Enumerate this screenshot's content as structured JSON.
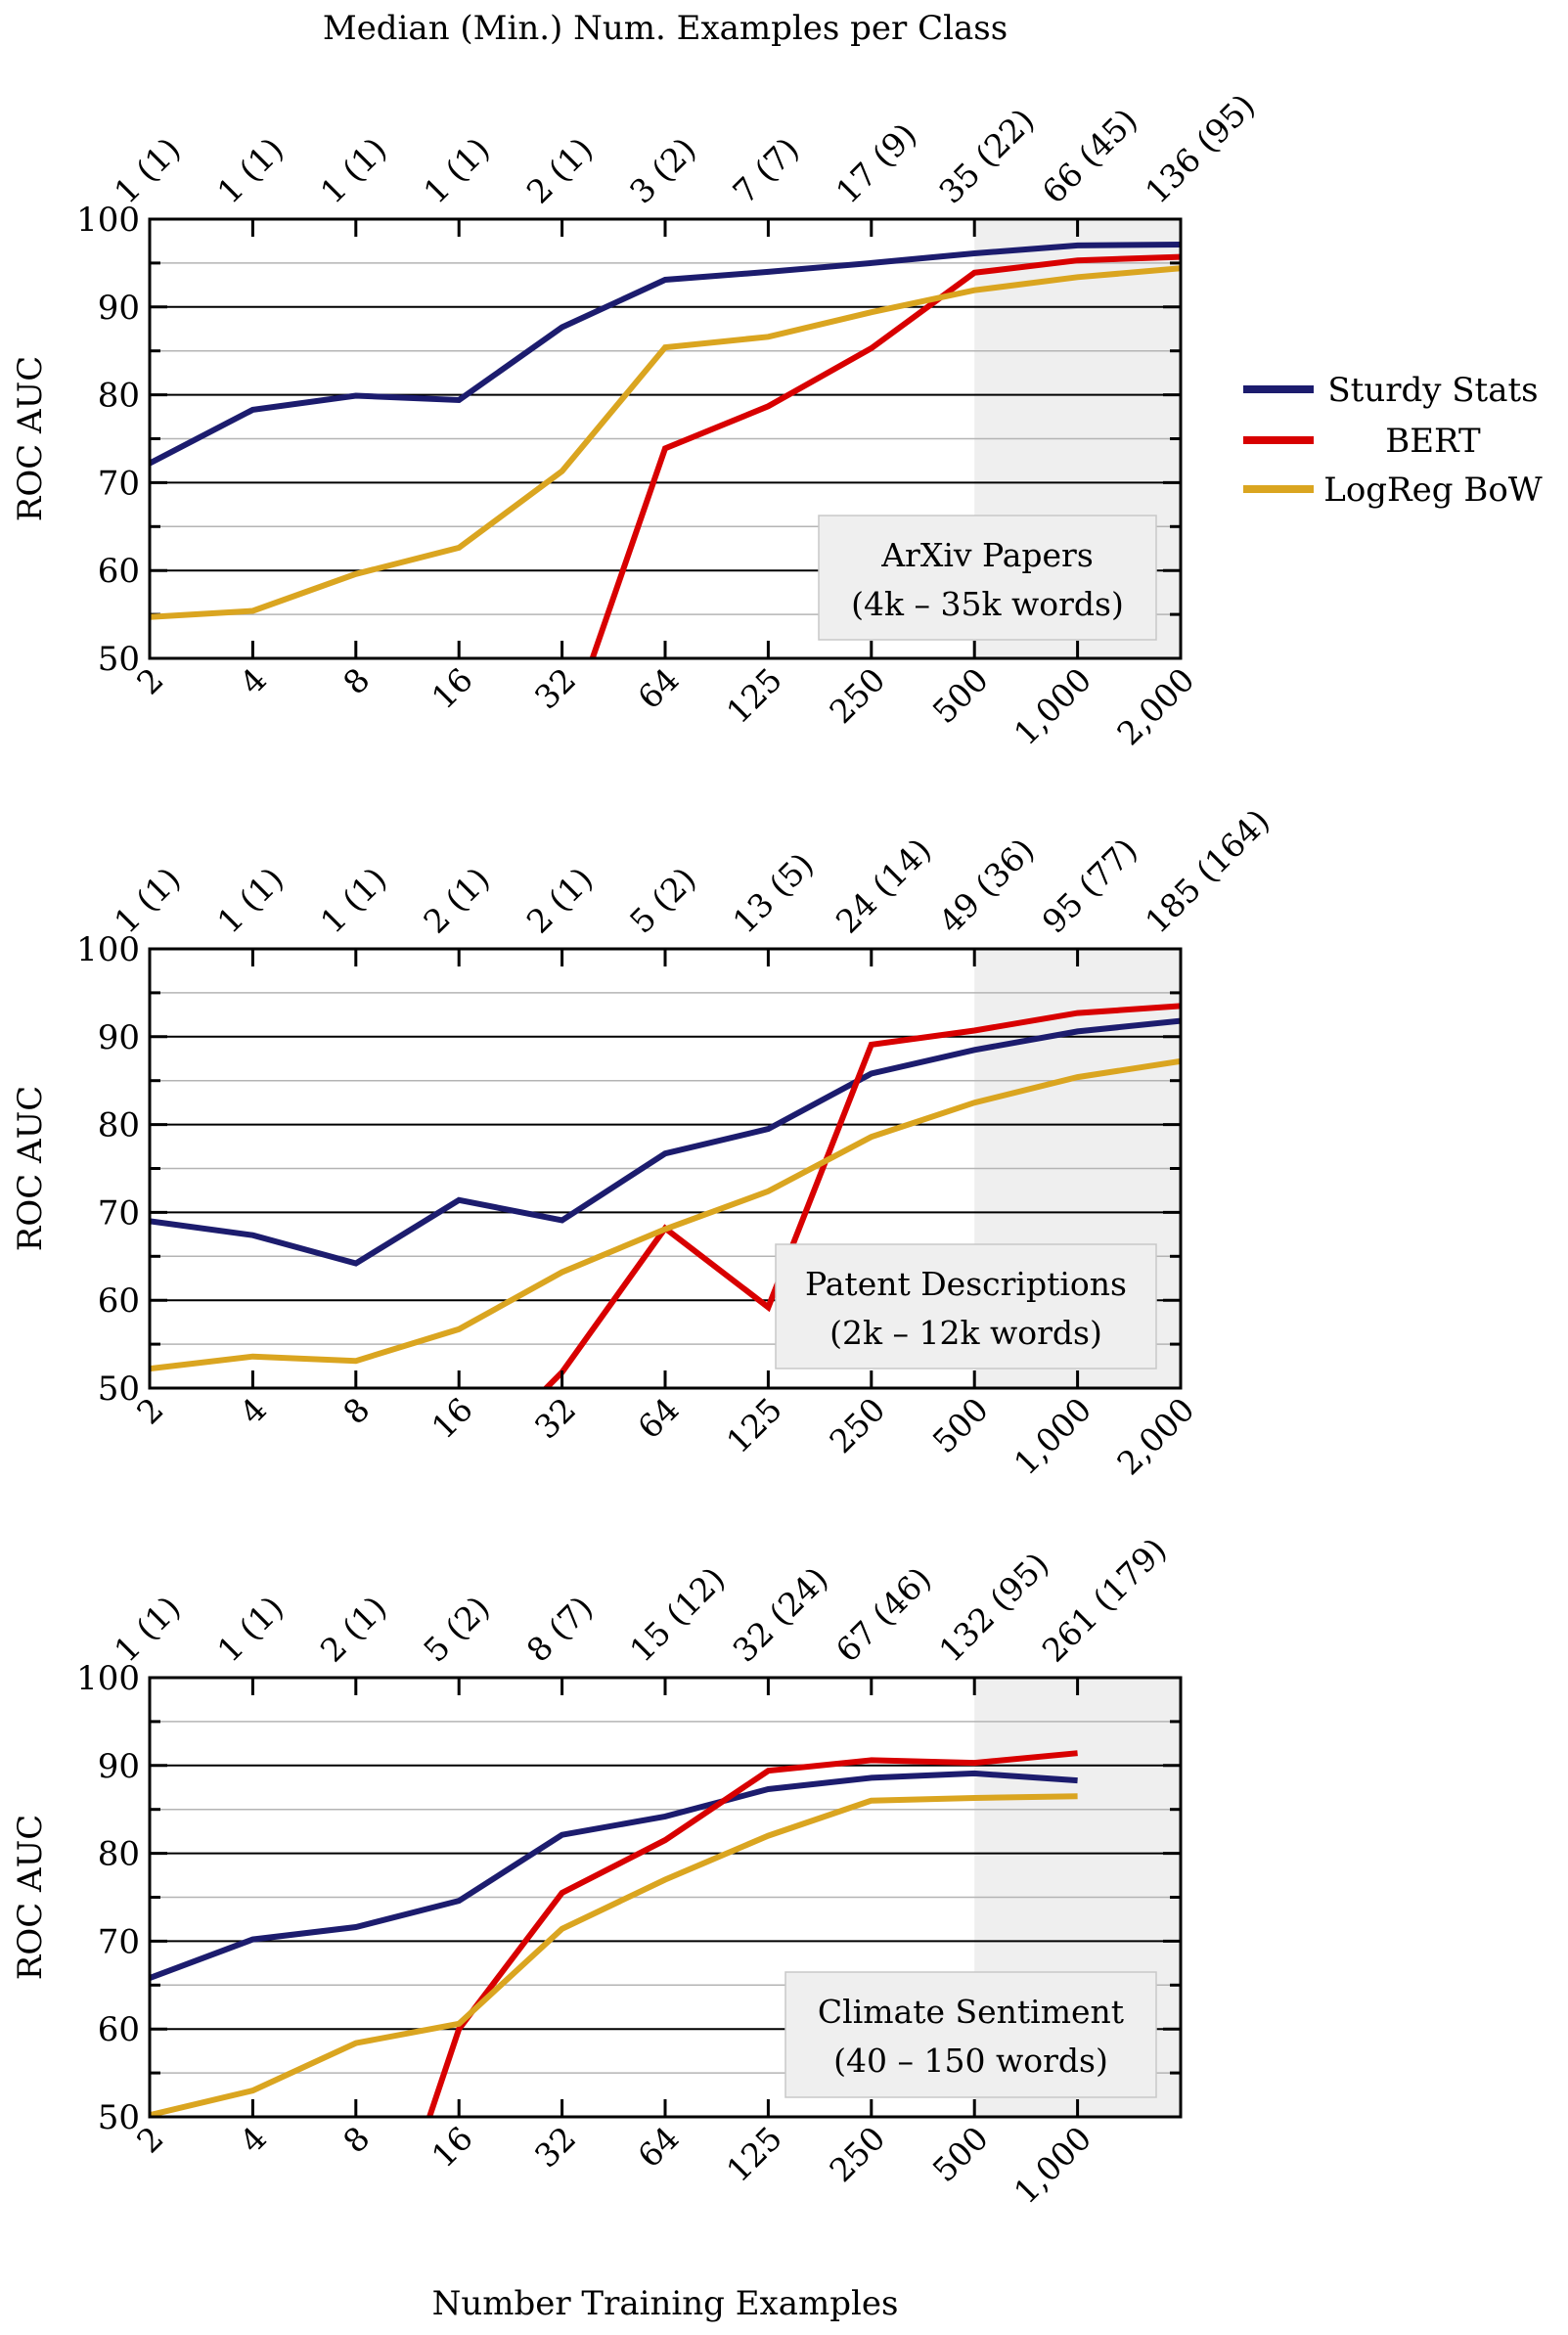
{
  "figure": {
    "top_title": "Median (Min.) Num. Examples per Class",
    "bottom_title": "Number Training Examples",
    "ylabel": "ROC AUC"
  },
  "legend": {
    "items": [
      {
        "label": "Sturdy Stats",
        "color": "#1c1c6e"
      },
      {
        "label": "BERT",
        "color": "#d80000"
      },
      {
        "label": "LogReg BoW",
        "color": "#daa520"
      }
    ]
  },
  "colors": {
    "shade": "#efefef",
    "box_bg": "#efefef",
    "box_border": "#c8c8c8",
    "major_grid": "#000000",
    "minor_grid": "#b4b4b4"
  },
  "chart_data": [
    {
      "type": "line",
      "title": "ArXiv Papers",
      "subtitle": "(4k – 35k words)",
      "xlabel": "Number Training Examples",
      "ylabel": "ROC AUC",
      "ylim": [
        50,
        100
      ],
      "yticks": [
        50,
        60,
        70,
        80,
        90,
        100
      ],
      "grid": true,
      "shaded_from": "500",
      "x": [
        "2",
        "4",
        "8",
        "16",
        "32",
        "64",
        "125",
        "250",
        "500",
        "1,000",
        "2,000"
      ],
      "top_labels": [
        "1 (1)",
        "1 (1)",
        "1 (1)",
        "1 (1)",
        "2 (1)",
        "3 (2)",
        "7 (7)",
        "17 (9)",
        "35 (22)",
        "66 (45)",
        "136 (95)"
      ],
      "series": [
        {
          "name": "Sturdy Stats",
          "values": [
            72.2,
            78.3,
            79.9,
            79.4,
            87.7,
            93.1,
            94.0,
            95.0,
            96.1,
            97.0,
            97.1
          ]
        },
        {
          "name": "BERT",
          "values": [
            null,
            null,
            null,
            null,
            40.0,
            73.9,
            78.7,
            85.3,
            93.9,
            95.3,
            95.7
          ]
        },
        {
          "name": "LogReg BoW",
          "values": [
            54.7,
            55.4,
            59.6,
            62.6,
            71.3,
            85.4,
            86.6,
            89.4,
            91.9,
            93.4,
            94.4
          ]
        }
      ],
      "legend_position": "right"
    },
    {
      "type": "line",
      "title": "Patent Descriptions",
      "subtitle": "(2k – 12k words)",
      "xlabel": "Number Training Examples",
      "ylabel": "ROC AUC",
      "ylim": [
        50,
        100
      ],
      "yticks": [
        50,
        60,
        70,
        80,
        90,
        100
      ],
      "grid": true,
      "shaded_from": "500",
      "x": [
        "2",
        "4",
        "8",
        "16",
        "32",
        "64",
        "125",
        "250",
        "500",
        "1,000",
        "2,000"
      ],
      "top_labels": [
        "1 (1)",
        "1 (1)",
        "1 (1)",
        "2 (1)",
        "2 (1)",
        "5 (2)",
        "13 (5)",
        "24 (14)",
        "49 (36)",
        "95 (77)",
        "185 (164)"
      ],
      "series": [
        {
          "name": "Sturdy Stats",
          "values": [
            69.0,
            67.4,
            64.2,
            71.4,
            69.1,
            76.7,
            79.5,
            85.8,
            88.5,
            90.6,
            91.8
          ]
        },
        {
          "name": "BERT",
          "values": [
            null,
            null,
            null,
            40.0,
            51.8,
            68.2,
            59.2,
            89.1,
            90.7,
            92.7,
            93.5
          ]
        },
        {
          "name": "LogReg BoW",
          "values": [
            52.2,
            53.6,
            53.1,
            56.7,
            63.2,
            68.1,
            72.4,
            78.6,
            82.5,
            85.4,
            87.2
          ]
        }
      ]
    },
    {
      "type": "line",
      "title": "Climate Sentiment",
      "subtitle": "(40 – 150 words)",
      "xlabel": "Number Training Examples",
      "ylabel": "ROC AUC",
      "ylim": [
        50,
        100
      ],
      "yticks": [
        50,
        60,
        70,
        80,
        90,
        100
      ],
      "grid": true,
      "shaded_from": "500",
      "x": [
        "2",
        "4",
        "8",
        "16",
        "32",
        "64",
        "125",
        "250",
        "500",
        "1,000"
      ],
      "top_labels": [
        "1 (1)",
        "1 (1)",
        "2 (1)",
        "5 (2)",
        "8 (7)",
        "15 (12)",
        "32 (24)",
        "67 (46)",
        "132 (95)",
        "261 (179)"
      ],
      "series": [
        {
          "name": "Sturdy Stats",
          "values": [
            65.8,
            70.2,
            71.6,
            74.6,
            82.1,
            84.2,
            87.3,
            88.6,
            89.1,
            88.3
          ]
        },
        {
          "name": "BERT",
          "values": [
            null,
            null,
            25.0,
            60.0,
            75.5,
            81.5,
            89.4,
            90.6,
            90.3,
            91.4
          ]
        },
        {
          "name": "LogReg BoW",
          "values": [
            50.2,
            53.0,
            58.4,
            60.6,
            71.4,
            77.0,
            82.0,
            86.0,
            86.3,
            86.5
          ]
        }
      ]
    }
  ]
}
